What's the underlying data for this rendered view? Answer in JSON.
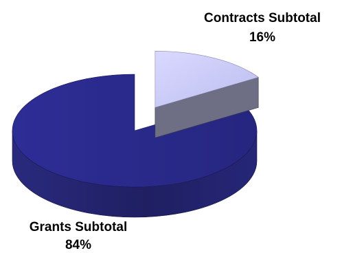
{
  "chart_data": {
    "type": "pie",
    "style": "3d-exploded",
    "slices": [
      {
        "label": "Contracts Subtotal",
        "percent_label": "16%",
        "value": 16,
        "color": "#c8c8f5",
        "side_color": "#5c5c70"
      },
      {
        "label": "Grants Subtotal",
        "percent_label": "84%",
        "value": 84,
        "color": "#2a2a8a",
        "side_color": "#1f1f66"
      }
    ],
    "legend": "none"
  }
}
